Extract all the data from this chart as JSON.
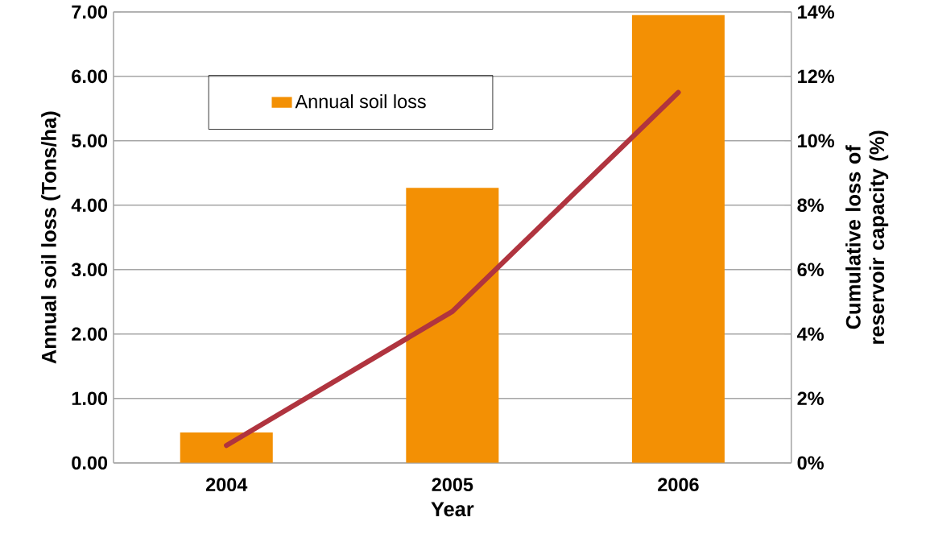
{
  "chart_data": {
    "type": "bar",
    "xlabel": "Year",
    "ylabel": "Annual soil loss (Tons/ha)",
    "y2label": "Cumulative loss of reservoir capacity (%)",
    "categories": [
      "2004",
      "2005",
      "2006"
    ],
    "series": [
      {
        "name": "Annual soil loss",
        "color": "#f39004",
        "values": [
          0.47,
          4.27,
          6.95
        ]
      },
      {
        "type": "line",
        "axis": "y2",
        "color": "#b0343f",
        "values": [
          0.54,
          4.7,
          11.5
        ]
      }
    ],
    "ylim": [
      0,
      7
    ],
    "yticks": [
      {
        "value": 0,
        "label": "0.00"
      },
      {
        "value": 1,
        "label": "1.00"
      },
      {
        "value": 2,
        "label": "2.00"
      },
      {
        "value": 3,
        "label": "3.00"
      },
      {
        "value": 4,
        "label": "4.00"
      },
      {
        "value": 5,
        "label": "5.00"
      },
      {
        "value": 6,
        "label": "6.00"
      },
      {
        "value": 7,
        "label": "7.00"
      }
    ],
    "y2lim": [
      0,
      14
    ],
    "y2ticks": [
      {
        "value": 0,
        "label": "0%"
      },
      {
        "value": 2,
        "label": "2%"
      },
      {
        "value": 4,
        "label": "4%"
      },
      {
        "value": 6,
        "label": "6%"
      },
      {
        "value": 8,
        "label": "8%"
      },
      {
        "value": 10,
        "label": "10%"
      },
      {
        "value": 12,
        "label": "12%"
      },
      {
        "value": 14,
        "label": "14%"
      }
    ],
    "grid": "y",
    "legend": "top left"
  }
}
